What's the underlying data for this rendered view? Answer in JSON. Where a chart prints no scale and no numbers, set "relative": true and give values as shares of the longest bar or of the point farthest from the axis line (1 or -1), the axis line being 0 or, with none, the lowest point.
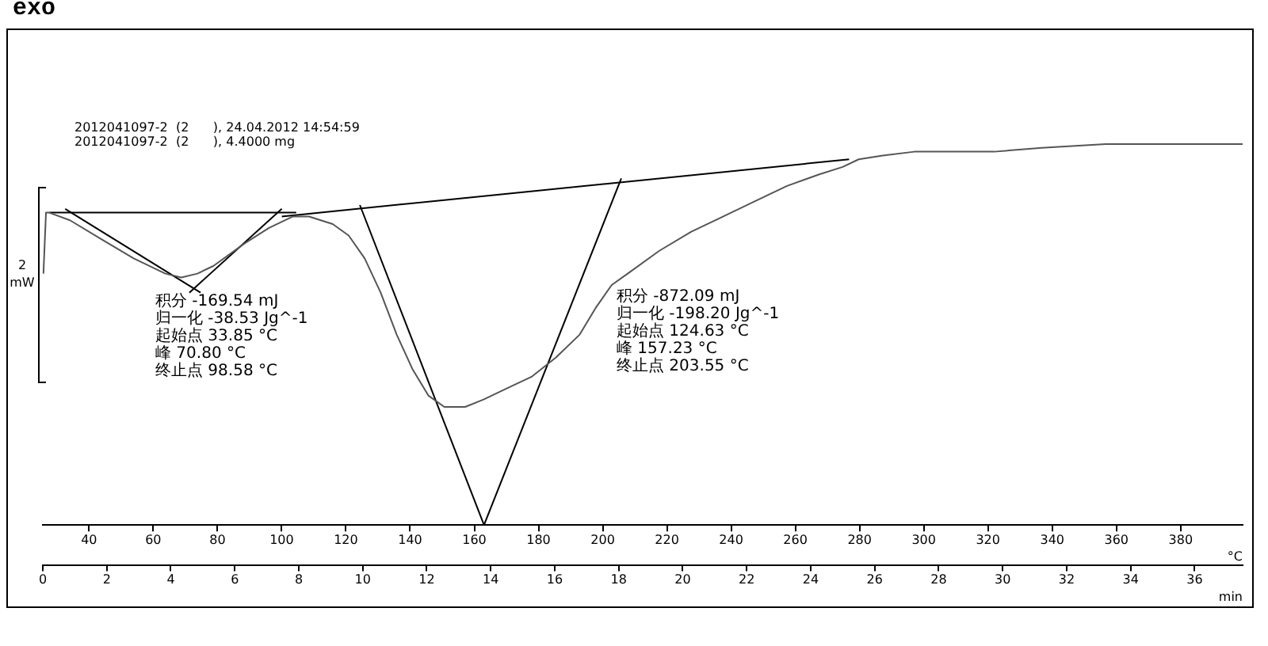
{
  "chart_data": {
    "type": "line",
    "relative": true,
    "xlabel": "min",
    "x2label": "°C",
    "xlim": [
      0,
      37.5
    ],
    "xticks": [
      0,
      2,
      4,
      6,
      8,
      10,
      12,
      14,
      16,
      18,
      20,
      22,
      24,
      26,
      28,
      30,
      32,
      34,
      36
    ],
    "x2lim": [
      25.6,
      399.3
    ],
    "x2ticks": [
      40,
      60,
      80,
      100,
      120,
      140,
      160,
      180,
      200,
      220,
      240,
      260,
      280,
      300,
      320,
      340,
      360,
      380
    ],
    "grid": false,
    "legend": false,
    "marker": "none",
    "line_style": "solid",
    "series": [
      {
        "color": "#555555",
        "x": [
          0.02,
          0.1,
          0.2,
          0.85,
          1.84,
          2.84,
          3.83,
          4.33,
          4.83,
          5.33,
          6.32,
          7.07,
          7.82,
          8.32,
          9.06,
          9.56,
          10.06,
          10.56,
          11.06,
          11.55,
          12.05,
          12.55,
          13.2,
          13.79,
          14.54,
          15.29,
          16.04,
          16.78,
          17.28,
          17.78,
          18.28,
          19.27,
          20.27,
          21.27,
          22.26,
          23.26,
          24.25,
          25.0,
          25.5,
          26.25,
          27.24,
          28.24,
          29.73,
          31.22,
          33.22,
          35.21,
          37.5
        ],
        "values": [
          0.66,
          0.82,
          0.82,
          0.8,
          0.75,
          0.7,
          0.66,
          0.65,
          0.66,
          0.68,
          0.74,
          0.78,
          0.81,
          0.81,
          0.79,
          0.76,
          0.7,
          0.61,
          0.5,
          0.41,
          0.34,
          0.31,
          0.31,
          0.33,
          0.36,
          0.39,
          0.44,
          0.5,
          0.57,
          0.63,
          0.66,
          0.72,
          0.77,
          0.81,
          0.85,
          0.89,
          0.92,
          0.94,
          0.96,
          0.97,
          0.98,
          0.98,
          0.98,
          0.99,
          1.0,
          1.0,
          1.0
        ]
      },
      {
        "type": "line",
        "color": "#000000",
        "x": [
          0.2,
          7.92
        ],
        "values": [
          0.82,
          0.82
        ]
      },
      {
        "type": "line",
        "color": "#000000",
        "x": [
          0.7,
          4.93
        ],
        "values": [
          0.83,
          0.61
        ]
      },
      {
        "type": "line",
        "color": "#000000",
        "x": [
          4.58,
          7.47
        ],
        "values": [
          0.61,
          0.83
        ]
      },
      {
        "type": "line",
        "color": "#000000",
        "x": [
          7.47,
          25.2
        ],
        "values": [
          0.81,
          0.96
        ]
      },
      {
        "type": "line",
        "color": "#000000",
        "x": [
          9.91,
          13.79
        ],
        "values": [
          0.84,
          0.0
        ]
      },
      {
        "type": "line",
        "color": "#000000",
        "x": [
          13.79,
          18.08
        ],
        "values": [
          0.0,
          0.91
        ]
      }
    ],
    "annotations": [
      "exo",
      "2012041097-2  (2      ), 24.04.2012 14:54:59",
      "2012041097-2  (2      ), 4.4000 mg",
      "2 mW",
      "积分 -169.54 mJ",
      "归一化 -38.53 Jg^-1",
      "起始点 33.85 °C",
      "峰 70.80 °C",
      "终止点 98.58 °C",
      "积分 -872.09 mJ",
      "归一化 -198.20 Jg^-1",
      "起始点 124.63 °C",
      "峰 157.23 °C",
      "终止点 203.55 °C"
    ]
  }
}
